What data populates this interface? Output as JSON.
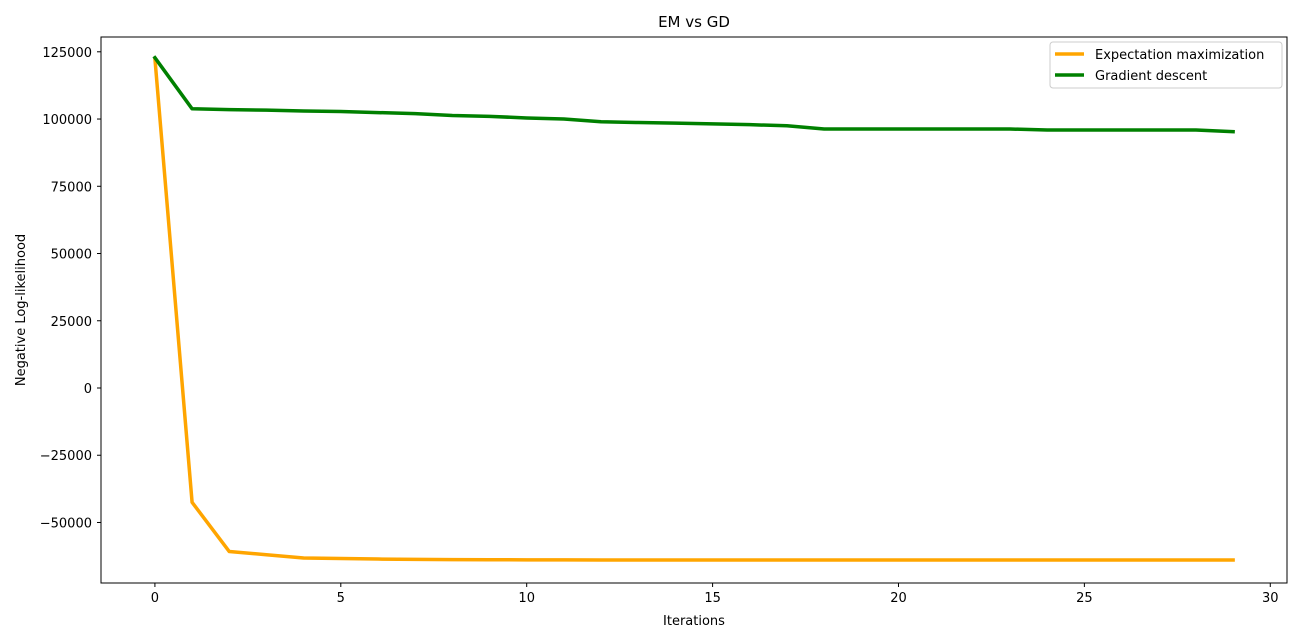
{
  "chart_data": {
    "type": "line",
    "title": "EM vs GD",
    "xlabel": "Iterations",
    "ylabel": "Negative Log-likelihood",
    "xlim": [
      -1.45,
      30.45
    ],
    "ylim": [
      -72500,
      130500
    ],
    "xticks": [
      0,
      5,
      10,
      15,
      20,
      25,
      30
    ],
    "xtick_labels": [
      "0",
      "5",
      "10",
      "15",
      "20",
      "25",
      "30"
    ],
    "yticks": [
      -50000,
      -25000,
      0,
      25000,
      50000,
      75000,
      100000,
      125000
    ],
    "ytick_labels": [
      "−50000",
      "−25000",
      "0",
      "25000",
      "50000",
      "75000",
      "100000",
      "125000"
    ],
    "grid": false,
    "legend_position": "top-right",
    "x": [
      0,
      1,
      2,
      3,
      4,
      5,
      6,
      7,
      8,
      9,
      10,
      11,
      12,
      13,
      14,
      15,
      16,
      17,
      18,
      19,
      20,
      21,
      22,
      23,
      24,
      25,
      26,
      27,
      28,
      29
    ],
    "series": [
      {
        "name": "Expectation maximization",
        "color": "#FFA500",
        "values": [
          122500,
          -42500,
          -60800,
          -62000,
          -63200,
          -63400,
          -63600,
          -63700,
          -63800,
          -63850,
          -63900,
          -63900,
          -63950,
          -63950,
          -63950,
          -63950,
          -63950,
          -63950,
          -63950,
          -63950,
          -63950,
          -63950,
          -63950,
          -63950,
          -63950,
          -63950,
          -63950,
          -63950,
          -63950,
          -63950
        ]
      },
      {
        "name": "Gradient descent",
        "color": "#008000",
        "values": [
          122800,
          103800,
          103500,
          103300,
          103000,
          102800,
          102400,
          102000,
          101300,
          101000,
          100400,
          100000,
          99000,
          98700,
          98500,
          98200,
          97900,
          97500,
          96300,
          96300,
          96300,
          96300,
          96300,
          96300,
          95900,
          95900,
          95900,
          95900,
          95900,
          95300
        ]
      }
    ]
  }
}
